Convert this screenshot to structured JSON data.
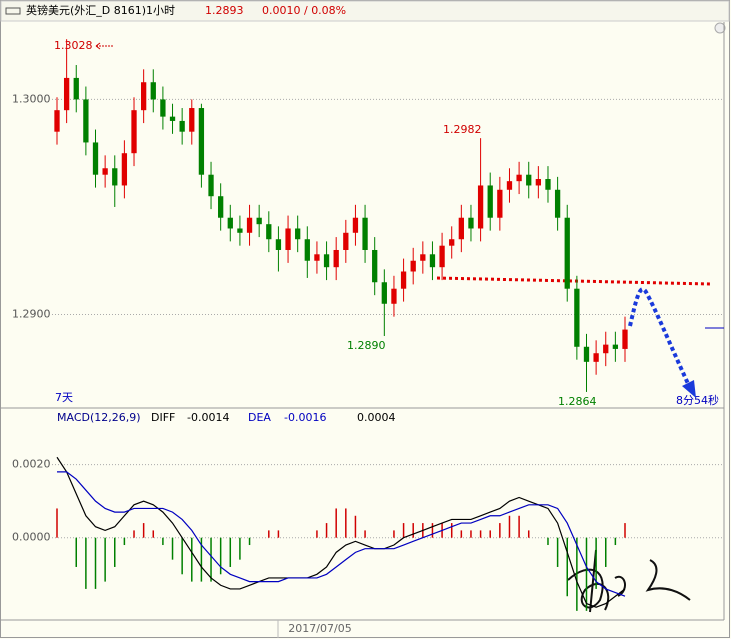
{
  "chart_data": [
    {
      "type": "candlestick",
      "title": "英镑美元(外汇_D 8161)1小时",
      "last_price": "1.2893",
      "change": "0.0010 / 0.08%",
      "up_color": "#e00000",
      "down_color": "#008000",
      "open": [
        1.2985,
        1.2995,
        1.301,
        1.3,
        1.298,
        1.2965,
        1.2968,
        1.296,
        1.2975,
        1.2995,
        1.3008,
        1.3,
        1.2992,
        1.299,
        1.2985,
        1.2996,
        1.2965,
        1.2955,
        1.2945,
        1.294,
        1.2938,
        1.2945,
        1.2942,
        1.2935,
        1.293,
        1.294,
        1.2935,
        1.2925,
        1.2928,
        1.2922,
        1.293,
        1.2938,
        1.2945,
        1.293,
        1.2915,
        1.2905,
        1.2912,
        1.292,
        1.2925,
        1.2928,
        1.2922,
        1.2932,
        1.2935,
        1.2945,
        1.294,
        1.296,
        1.2945,
        1.2958,
        1.2962,
        1.2965,
        1.296,
        1.2963,
        1.2958,
        1.2945,
        1.2912,
        1.2885,
        1.2878,
        1.2882,
        1.2886,
        1.2884
      ],
      "high": [
        1.3001,
        1.3028,
        1.3016,
        1.3006,
        1.2986,
        1.2974,
        1.2974,
        1.2981,
        1.3001,
        1.3014,
        1.3014,
        1.3006,
        1.2998,
        1.2996,
        1.3,
        1.2998,
        1.2971,
        1.2961,
        1.2951,
        1.2946,
        1.2951,
        1.2951,
        1.2948,
        1.2941,
        1.2946,
        1.2946,
        1.2941,
        1.2934,
        1.2934,
        1.2936,
        1.2944,
        1.2951,
        1.2951,
        1.2936,
        1.2921,
        1.2918,
        1.2926,
        1.2931,
        1.2934,
        1.2934,
        1.2938,
        1.2941,
        1.2951,
        1.2951,
        1.2982,
        1.2966,
        1.2964,
        1.2968,
        1.2971,
        1.2971,
        1.2969,
        1.2969,
        1.2964,
        1.2951,
        1.2918,
        1.2891,
        1.2888,
        1.2892,
        1.2892,
        1.2899
      ],
      "low": [
        1.2979,
        1.2989,
        1.2994,
        1.2974,
        1.2959,
        1.2959,
        1.295,
        1.2954,
        1.2969,
        1.2989,
        1.2994,
        1.2986,
        1.2984,
        1.2979,
        1.2979,
        1.2959,
        1.2949,
        1.2939,
        1.2934,
        1.2932,
        1.2932,
        1.2936,
        1.2929,
        1.292,
        1.2924,
        1.2929,
        1.2917,
        1.2919,
        1.2916,
        1.2916,
        1.2924,
        1.2932,
        1.2924,
        1.2909,
        1.289,
        1.2899,
        1.2906,
        1.2914,
        1.2919,
        1.2916,
        1.2916,
        1.2926,
        1.2929,
        1.2934,
        1.2934,
        1.2939,
        1.2939,
        1.2952,
        1.2956,
        1.2954,
        1.2954,
        1.2952,
        1.2939,
        1.2906,
        1.2879,
        1.2864,
        1.2872,
        1.2876,
        1.2878,
        1.2878
      ],
      "close": [
        1.2995,
        1.301,
        1.3,
        1.298,
        1.2965,
        1.2968,
        1.296,
        1.2975,
        1.2995,
        1.3008,
        1.3,
        1.2992,
        1.299,
        1.2985,
        1.2996,
        1.2965,
        1.2955,
        1.2945,
        1.294,
        1.2938,
        1.2945,
        1.2942,
        1.2935,
        1.293,
        1.294,
        1.2935,
        1.2925,
        1.2928,
        1.2922,
        1.293,
        1.2938,
        1.2945,
        1.293,
        1.2915,
        1.2905,
        1.2912,
        1.292,
        1.2925,
        1.2928,
        1.2922,
        1.2932,
        1.2935,
        1.2945,
        1.294,
        1.296,
        1.2945,
        1.2958,
        1.2962,
        1.2965,
        1.296,
        1.2963,
        1.2958,
        1.2945,
        1.2912,
        1.2885,
        1.2878,
        1.2882,
        1.2886,
        1.2884,
        1.2893
      ],
      "ylim": [
        1.2857,
        1.3036
      ],
      "yticks": [
        {
          "value": 1.3,
          "label": "1.3000"
        },
        {
          "value": 1.29,
          "label": "1.2900"
        }
      ],
      "grid": true,
      "annotations": [
        "1.3028",
        "1.2982",
        "1.2890",
        "1.2864",
        "7天",
        "8分54秒"
      ]
    },
    {
      "type": "macd",
      "indicator": "MACD(12,26,9)",
      "diff_label": "DIFF",
      "diff_value": "-0.0014",
      "dea_label": "DEA",
      "dea_value": "-0.0016",
      "macd_value": "0.0004",
      "x_label": "2017/07/05",
      "series": [
        {
          "name": "DIFF",
          "color": "#000000",
          "values": [
            0.0022,
            0.0018,
            0.0012,
            0.0006,
            0.0003,
            0.0002,
            0.0003,
            0.0006,
            0.0009,
            0.001,
            0.0009,
            0.0007,
            0.0004,
            0.0,
            -0.0004,
            -0.0008,
            -0.0011,
            -0.0013,
            -0.0014,
            -0.0014,
            -0.0013,
            -0.0012,
            -0.0011,
            -0.0011,
            -0.0011,
            -0.0011,
            -0.0011,
            -0.001,
            -0.0008,
            -0.0004,
            -0.0002,
            -0.0001,
            -0.0002,
            -0.0003,
            -0.0003,
            -0.0002,
            0.0,
            0.0001,
            0.0002,
            0.0003,
            0.0004,
            0.0005,
            0.0005,
            0.0005,
            0.0006,
            0.0007,
            0.0008,
            0.001,
            0.0011,
            0.001,
            0.0009,
            0.0008,
            0.0004,
            -0.0004,
            -0.0012,
            -0.0018,
            -0.0019,
            -0.0018,
            -0.0016,
            -0.0014
          ]
        },
        {
          "name": "DEA",
          "color": "#0000c0",
          "values": [
            0.0018,
            0.0018,
            0.0016,
            0.0013,
            0.001,
            0.0008,
            0.0007,
            0.0007,
            0.0008,
            0.0008,
            0.0008,
            0.0008,
            0.0007,
            0.0005,
            0.0002,
            -0.0002,
            -0.0005,
            -0.0008,
            -0.001,
            -0.0011,
            -0.0012,
            -0.0012,
            -0.0012,
            -0.0012,
            -0.0011,
            -0.0011,
            -0.0011,
            -0.0011,
            -0.001,
            -0.0008,
            -0.0006,
            -0.0004,
            -0.0003,
            -0.0003,
            -0.0003,
            -0.0003,
            -0.0002,
            -0.0001,
            0.0,
            0.0001,
            0.0002,
            0.0003,
            0.0004,
            0.0004,
            0.0005,
            0.0006,
            0.0006,
            0.0007,
            0.0008,
            0.0009,
            0.0009,
            0.0009,
            0.0008,
            0.0004,
            -0.0002,
            -0.0008,
            -0.0012,
            -0.0014,
            -0.0015,
            -0.0016
          ]
        }
      ],
      "histogram": [
        0.0008,
        0,
        -0.0008,
        -0.0014,
        -0.0014,
        -0.0012,
        -0.0008,
        -0.0002,
        0.0002,
        0.0004,
        0.0002,
        -0.0002,
        -0.0006,
        -0.001,
        -0.0012,
        -0.0012,
        -0.0012,
        -0.001,
        -0.0008,
        -0.0006,
        -0.0002,
        0,
        0.0002,
        0.0002,
        0,
        0,
        0,
        0.0002,
        0.0004,
        0.0008,
        0.0008,
        0.0006,
        0.0002,
        0,
        0,
        0.0002,
        0.0004,
        0.0004,
        0.0004,
        0.0004,
        0.0004,
        0.0004,
        0.0002,
        0.0002,
        0.0002,
        0.0002,
        0.0004,
        0.0006,
        0.0006,
        0.0002,
        0,
        -0.0002,
        -0.0008,
        -0.0016,
        -0.002,
        -0.002,
        -0.0014,
        -0.0008,
        -0.0002,
        0.0004
      ],
      "hist_up_color": "#d00000",
      "hist_down_color": "#008000",
      "ylim": [
        -0.00225,
        0.003
      ],
      "yticks": [
        {
          "value": 0.002,
          "label": "0.0020"
        },
        {
          "value": 0,
          "label": "0.0000"
        }
      ],
      "grid": true
    }
  ]
}
